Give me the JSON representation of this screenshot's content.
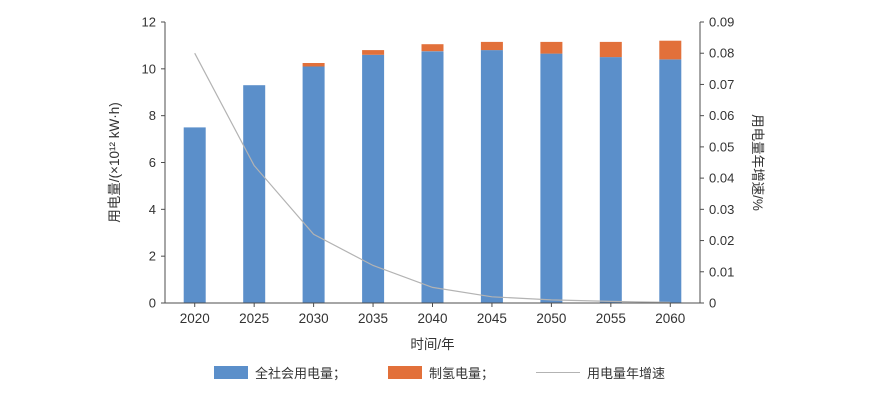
{
  "chart_data": {
    "type": "bar",
    "title": "",
    "categories": [
      "2020",
      "2025",
      "2030",
      "2035",
      "2040",
      "2045",
      "2050",
      "2055",
      "2060"
    ],
    "series": [
      {
        "name": "全社会用电量；",
        "kind": "bar",
        "axis": "left",
        "color": "#5b8fca",
        "values": [
          7.5,
          9.3,
          10.1,
          10.6,
          10.75,
          10.8,
          10.65,
          10.5,
          10.4
        ]
      },
      {
        "name": "制氢电量；",
        "kind": "bar",
        "axis": "left",
        "color": "#e2703a",
        "values": [
          0,
          0,
          0.15,
          0.2,
          0.3,
          0.35,
          0.5,
          0.65,
          0.8
        ]
      },
      {
        "name": "用电量年增速",
        "kind": "line",
        "axis": "right",
        "color": "#b3b3b3",
        "values": [
          0.08,
          0.044,
          0.022,
          0.012,
          0.005,
          0.002,
          0.001,
          0.0005,
          0.0002
        ]
      }
    ],
    "xlabel": "时间/年",
    "ylabel_left": "用电量/(×10¹² kW·h)",
    "ylabel_right": "用电量年增速/%",
    "ylim_left": [
      0,
      12
    ],
    "yticks_left": [
      "0",
      "2",
      "4",
      "6",
      "8",
      "10",
      "12"
    ],
    "ylim_right": [
      0,
      0.09
    ],
    "yticks_right": [
      "0",
      "0.01",
      "0.02",
      "0.03",
      "0.04",
      "0.05",
      "0.06",
      "0.07",
      "0.08",
      "0.09"
    ],
    "grid": false,
    "legend_position": "bottom"
  }
}
